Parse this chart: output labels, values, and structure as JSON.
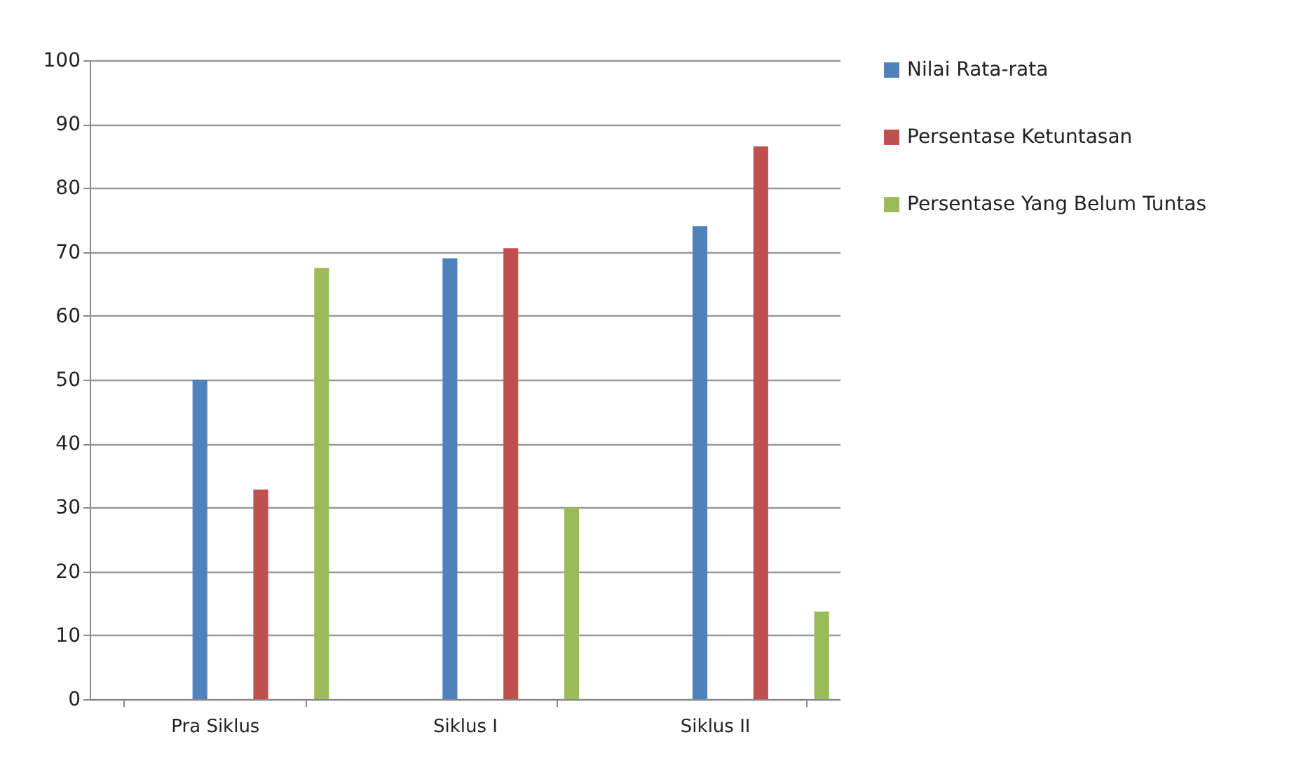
{
  "chart_data": {
    "type": "bar",
    "categories": [
      "Pra Siklus",
      "Siklus I",
      "Siklus II"
    ],
    "series": [
      {
        "name": "Nilai Rata-rata",
        "color": "#4f81bd",
        "values": [
          50,
          69,
          74
        ]
      },
      {
        "name": "Persentase Ketuntasan",
        "color": "#c0504d",
        "values": [
          32.8,
          70.6,
          86.5
        ]
      },
      {
        "name": "Persentase Yang Belum Tuntas",
        "color": "#9bbb59",
        "values": [
          67.5,
          30,
          13.7
        ]
      }
    ],
    "ylim": [
      0,
      100
    ],
    "yticks": [
      0,
      10,
      20,
      30,
      40,
      50,
      60,
      70,
      80,
      90,
      100
    ],
    "grid": "y",
    "legend": "right"
  }
}
